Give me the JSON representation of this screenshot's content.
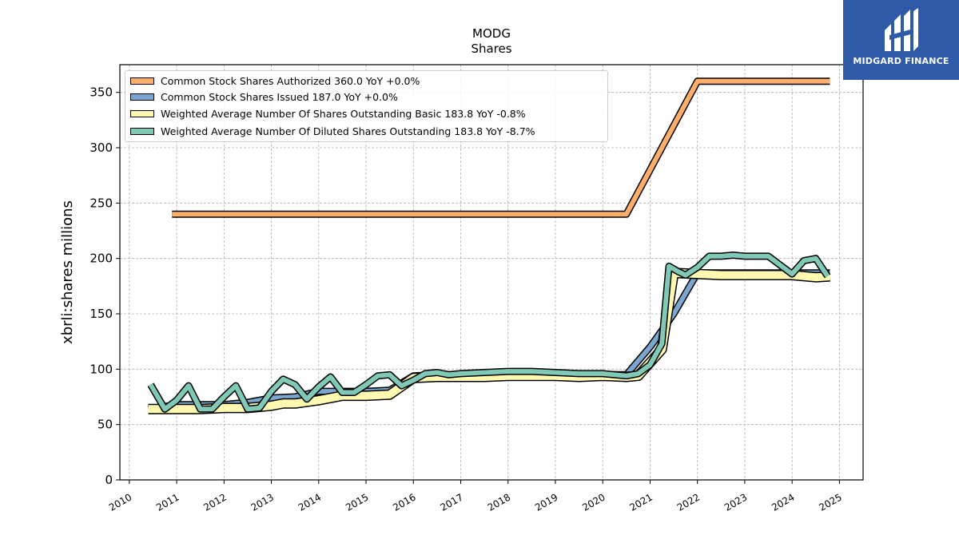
{
  "chart_data": {
    "type": "line",
    "title": "MODG",
    "subtitle": "Shares",
    "xlabel": "",
    "ylabel": "xbrli:shares millions",
    "xlim": [
      2009.8,
      2025.5
    ],
    "ylim": [
      0,
      375
    ],
    "xticks": [
      "2010",
      "2011",
      "2012",
      "2013",
      "2014",
      "2015",
      "2016",
      "2017",
      "2018",
      "2019",
      "2020",
      "2021",
      "2022",
      "2023",
      "2024",
      "2025"
    ],
    "yticks": [
      0,
      50,
      100,
      150,
      200,
      250,
      300,
      350
    ],
    "grid": true,
    "legend_position": "upper-left",
    "series": [
      {
        "name": "Common Stock Shares Authorized  360.0 YoY +0.0%",
        "color": "#fdae6b",
        "width": 6,
        "x": [
          2010.9,
          2020.5,
          2022.0,
          2024.8
        ],
        "y": [
          240,
          240,
          360,
          360
        ]
      },
      {
        "name": "Common Stock Shares Issued  187.0 YoY +0.0%",
        "color": "#7ba6cf",
        "width": 6,
        "x": [
          2010.4,
          2011.0,
          2011.5,
          2012.0,
          2012.5,
          2013.0,
          2013.5,
          2014.0,
          2014.5,
          2015.0,
          2015.5,
          2016.0,
          2016.5,
          2017.0,
          2017.5,
          2018.0,
          2018.5,
          2019.0,
          2019.5,
          2020.0,
          2020.5,
          2021.0,
          2021.5,
          2022.0,
          2022.5,
          2023.0,
          2023.5,
          2024.0,
          2024.5,
          2024.8
        ],
        "y": [
          64,
          68,
          68,
          68,
          70,
          74,
          75,
          80,
          80,
          80,
          81,
          94,
          95,
          95,
          96,
          96,
          96,
          96,
          95,
          95,
          95,
          120,
          150,
          187,
          187,
          187,
          187,
          187,
          187,
          187
        ]
      },
      {
        "name": "Weighted Average Number Of Shares Outstanding Basic  183.8 YoY -0.8%",
        "color": "#fff8b0",
        "width": 10,
        "x": [
          2010.4,
          2011.0,
          2011.5,
          2012.0,
          2012.5,
          2013.0,
          2013.25,
          2013.5,
          2014.0,
          2014.5,
          2015.0,
          2015.5,
          2016.0,
          2016.5,
          2017.0,
          2017.5,
          2018.0,
          2018.5,
          2019.0,
          2019.5,
          2020.0,
          2020.5,
          2020.75,
          2021.25,
          2021.5,
          2022.0,
          2022.5,
          2023.0,
          2023.5,
          2024.0,
          2024.5,
          2024.8
        ],
        "y": [
          64,
          64,
          64,
          65,
          65,
          67,
          69,
          69,
          72,
          76,
          76,
          77,
          92,
          93,
          93,
          93,
          94,
          94,
          94,
          93,
          94,
          93,
          94,
          118,
          187,
          186,
          185,
          185,
          185,
          185,
          183,
          183.8
        ]
      },
      {
        "name": "Weighted Average Number Of Diluted Shares Outstanding  183.8 YoY -8.7%",
        "color": "#7fc9b6",
        "width": 6,
        "x": [
          2010.45,
          2010.75,
          2011.0,
          2011.25,
          2011.5,
          2011.75,
          2012.0,
          2012.25,
          2012.5,
          2012.75,
          2013.0,
          2013.25,
          2013.5,
          2013.75,
          2014.0,
          2014.25,
          2014.5,
          2014.75,
          2015.0,
          2015.25,
          2015.5,
          2015.75,
          2016.0,
          2016.25,
          2016.5,
          2016.75,
          2017.0,
          2017.5,
          2018.0,
          2018.5,
          2019.0,
          2019.5,
          2020.0,
          2020.25,
          2020.5,
          2020.75,
          2021.0,
          2021.25,
          2021.4,
          2021.6,
          2021.75,
          2022.0,
          2022.25,
          2022.5,
          2022.75,
          2023.0,
          2023.5,
          2024.0,
          2024.25,
          2024.5,
          2024.75
        ],
        "y": [
          86,
          64,
          72,
          85,
          64,
          64,
          75,
          85,
          64,
          65,
          80,
          91,
          86,
          73,
          84,
          93,
          79,
          79,
          86,
          94,
          95,
          85,
          90,
          96,
          97,
          95,
          96,
          97,
          98,
          98,
          97,
          96,
          96,
          95,
          94,
          96,
          104,
          123,
          193,
          188,
          185,
          192,
          202,
          202,
          203,
          202,
          202,
          186,
          198,
          200,
          184
        ]
      }
    ]
  },
  "logo": {
    "text": "MIDGARD FINANCE",
    "color": "#2f5aa8"
  }
}
